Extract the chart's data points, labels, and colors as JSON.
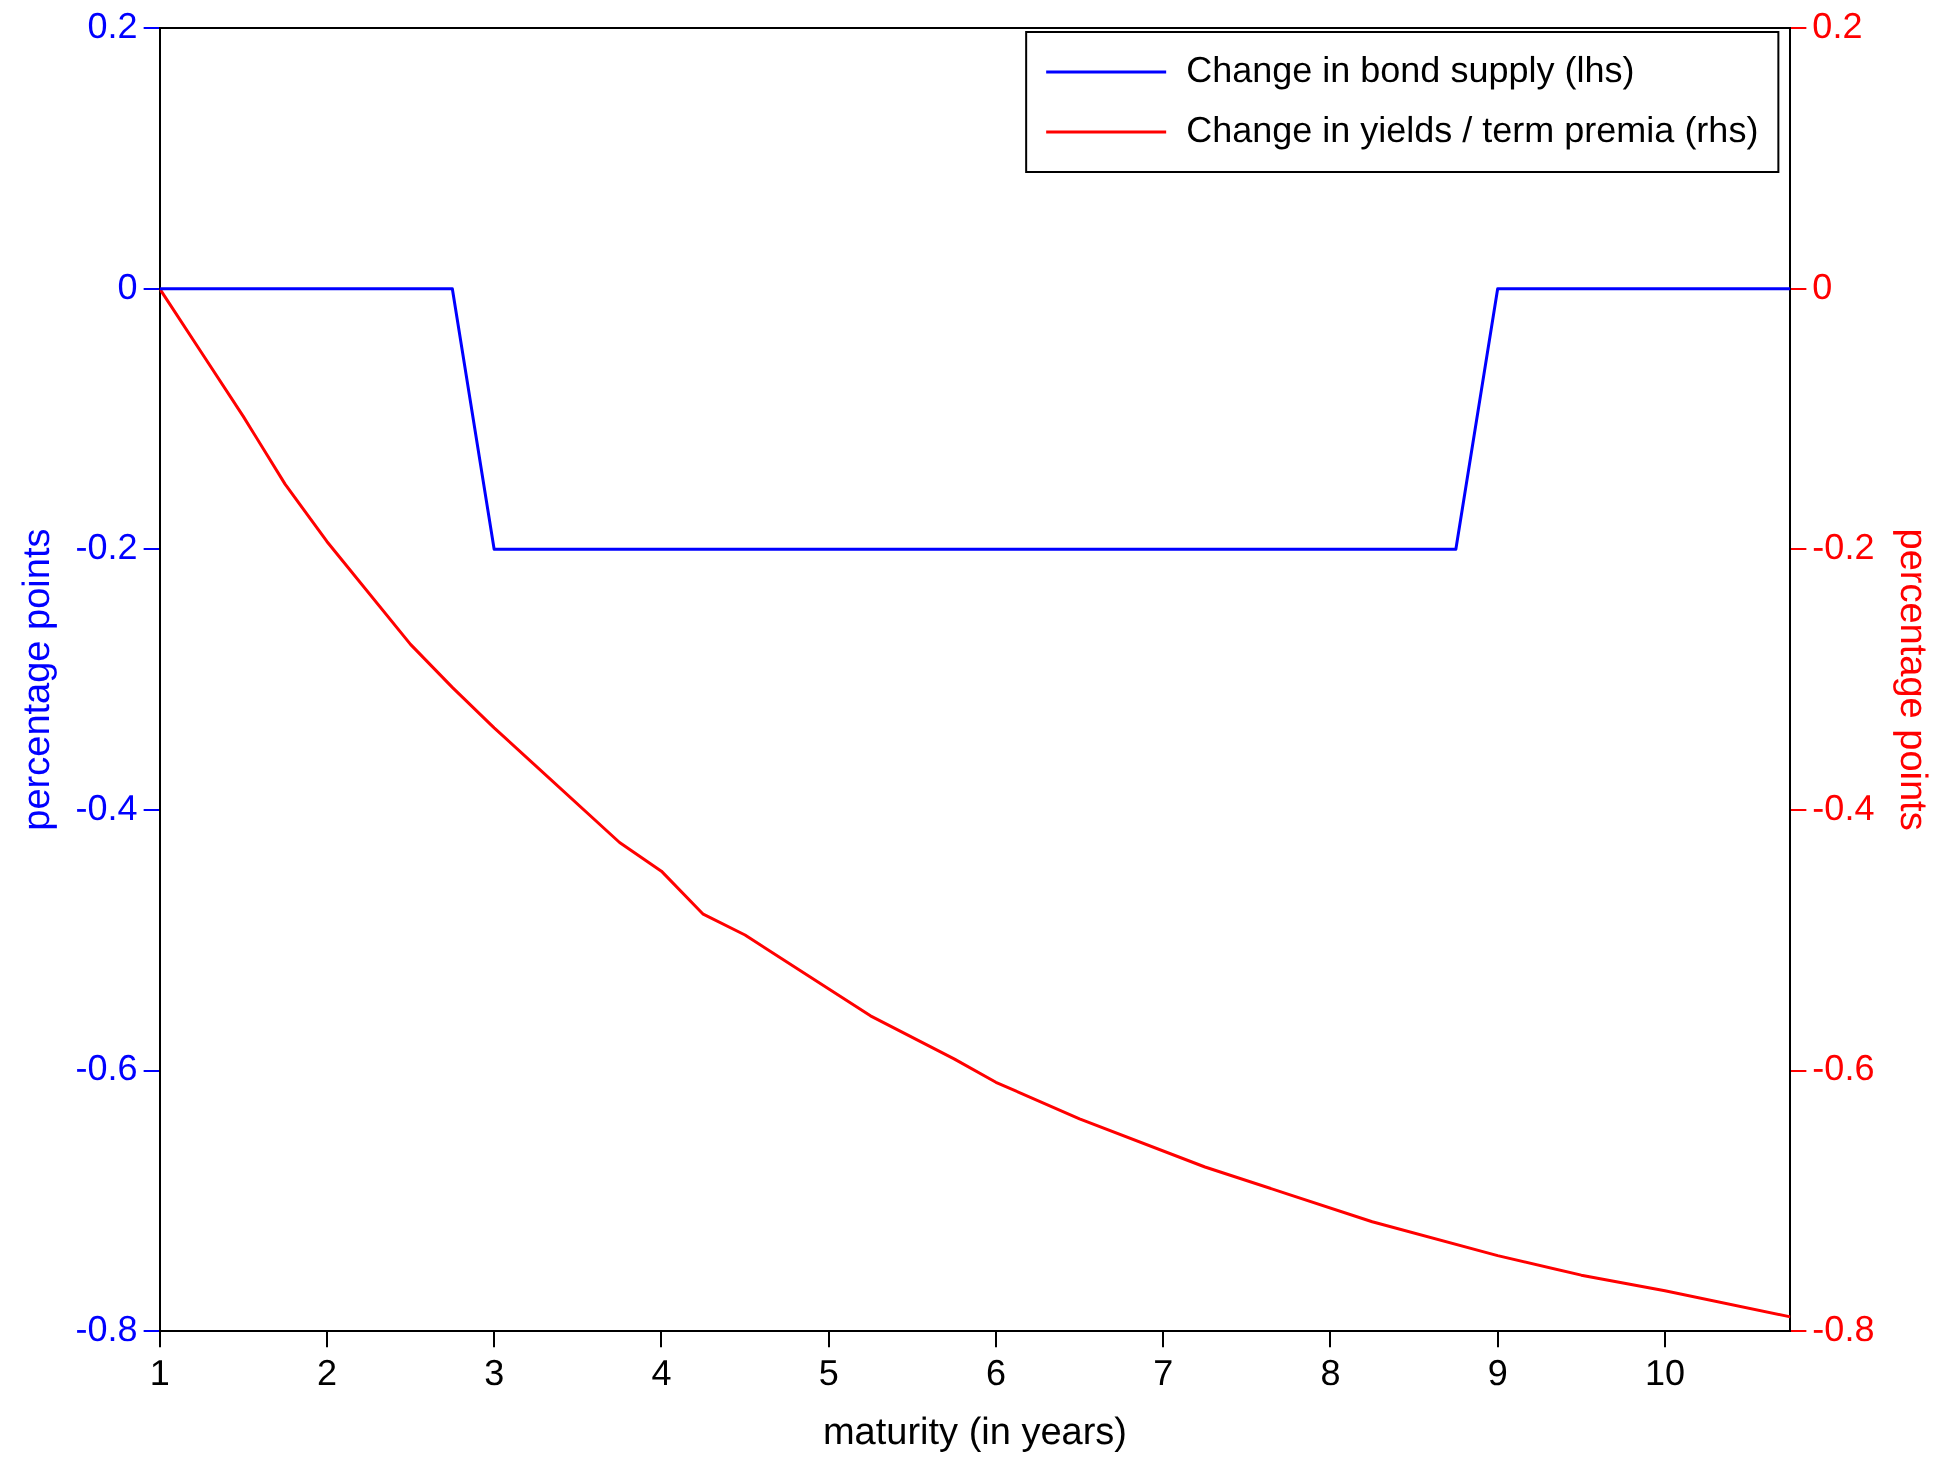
{
  "chart_data": {
    "type": "line",
    "xlabel": "maturity (in years)",
    "ylabel": "percentage points",
    "y2label": "percentage points",
    "xlim": [
      1,
      10.75
    ],
    "xticks": [
      1,
      2,
      3,
      4,
      5,
      6,
      7,
      8,
      9,
      10
    ],
    "ylim": [
      -0.8,
      0.2
    ],
    "yticks": [
      -0.8,
      -0.6,
      -0.4,
      -0.2,
      0,
      0.2
    ],
    "y2lim": [
      -0.8,
      0.2
    ],
    "y2ticks": [
      -0.8,
      -0.6,
      -0.4,
      -0.2,
      0,
      0.2
    ],
    "grid": false,
    "legend": "top right",
    "marker": "none",
    "line_style": "solid",
    "series": [
      {
        "name": "Change in bond supply (lhs)",
        "color": "#0000ff",
        "axis": "y",
        "x": [
          1,
          2.75,
          3,
          8.75,
          9,
          10.75
        ],
        "values": [
          0,
          0,
          -0.2,
          -0.2,
          0,
          0
        ]
      },
      {
        "name": "Change in yields / term premia (rhs)",
        "color": "#ff0000",
        "axis": "y2",
        "x": [
          1,
          1.25,
          1.5,
          1.75,
          2,
          2.5,
          2.75,
          3,
          3.75,
          4,
          4.25,
          4.5,
          5.25,
          5.75,
          6,
          6.5,
          7.25,
          7.75,
          8.25,
          9,
          9.5,
          10,
          10.75
        ],
        "values": [
          0,
          -0.049,
          -0.098,
          -0.15,
          -0.194,
          -0.273,
          -0.306,
          -0.337,
          -0.425,
          -0.447,
          -0.48,
          -0.496,
          -0.558,
          -0.591,
          -0.609,
          -0.637,
          -0.674,
          -0.695,
          -0.716,
          -0.742,
          -0.757,
          -0.769,
          -0.789
        ]
      }
    ]
  }
}
